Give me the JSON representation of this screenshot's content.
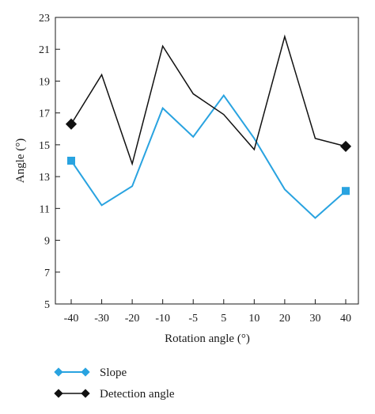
{
  "chart_data": {
    "type": "line",
    "xlabel": "Rotation angle (°)",
    "ylabel": "Angle (°)",
    "categories": [
      "-40",
      "-30",
      "-20",
      "-10",
      "-5",
      "5",
      "10",
      "20",
      "30",
      "40"
    ],
    "ylim": [
      5,
      23
    ],
    "yticks": [
      "5",
      "7",
      "9",
      "11",
      "13",
      "15",
      "17",
      "19",
      "21",
      "23"
    ],
    "grid": false,
    "legend_position": "bottom-left",
    "series": [
      {
        "name": "Slope",
        "color": "#29a3e0",
        "marker": "square",
        "values": [
          14.0,
          11.2,
          12.4,
          17.3,
          15.5,
          18.1,
          15.4,
          12.2,
          10.4,
          12.1
        ]
      },
      {
        "name": "Detection angle",
        "color": "#111111",
        "marker": "diamond",
        "values": [
          16.3,
          19.4,
          13.8,
          21.2,
          18.2,
          16.9,
          14.7,
          21.8,
          15.4,
          14.9
        ]
      }
    ]
  }
}
